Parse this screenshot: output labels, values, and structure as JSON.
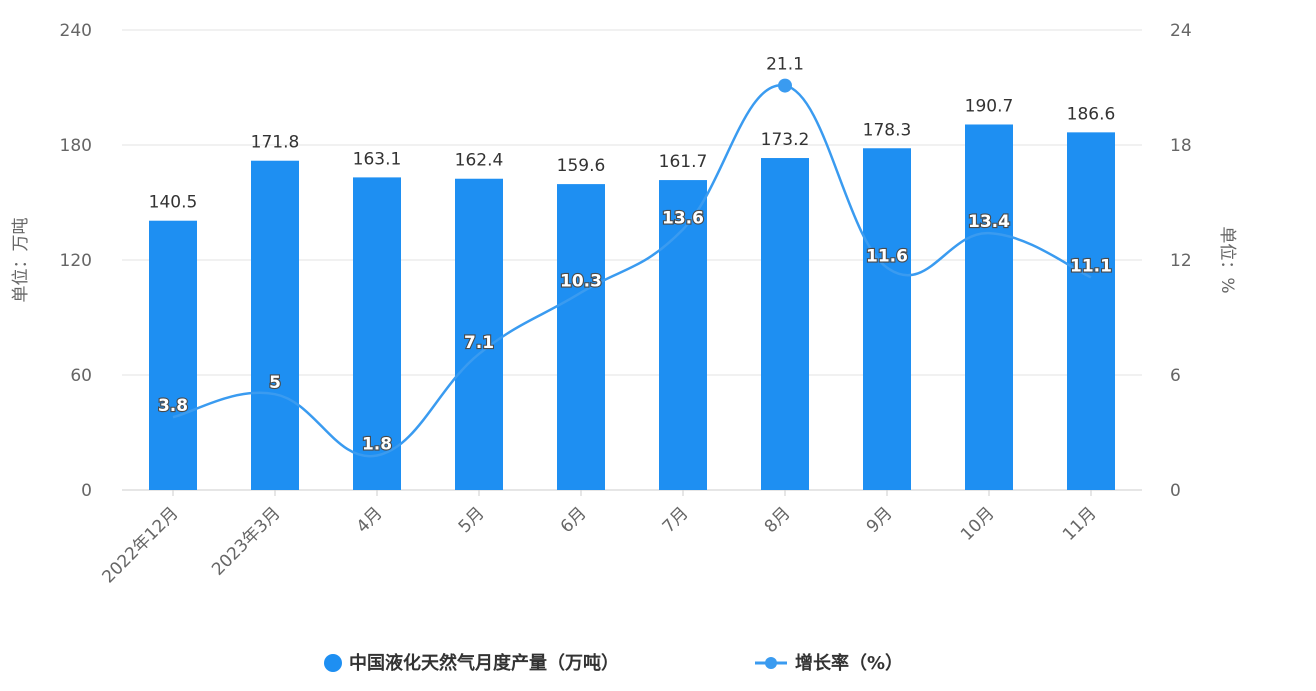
{
  "chart_data": {
    "type": "bar",
    "categories": [
      "2022年12月",
      "2023年3月",
      "4月",
      "5月",
      "6月",
      "7月",
      "8月",
      "9月",
      "10月",
      "11月"
    ],
    "series": [
      {
        "name": "中国液化天然气月度产量（万吨）",
        "type": "bar",
        "axis": "left",
        "values": [
          140.5,
          171.8,
          163.1,
          162.4,
          159.6,
          161.7,
          173.2,
          178.3,
          190.7,
          186.6
        ],
        "value_labels": [
          "140.5",
          "171.8",
          "163.1",
          "162.4",
          "159.6",
          "161.7",
          "173.2",
          "178.3",
          "190.7",
          "186.6"
        ]
      },
      {
        "name": "增长率（%）",
        "type": "line",
        "axis": "right",
        "values": [
          3.8,
          5,
          1.8,
          7.1,
          10.3,
          13.6,
          21.1,
          11.6,
          13.4,
          11.1
        ],
        "value_labels": [
          "3.8",
          "5",
          "1.8",
          "7.1",
          "10.3",
          "13.6",
          "21.1",
          "11.6",
          "13.4",
          "11.1"
        ]
      }
    ],
    "y_left": {
      "label": "单位：万吨",
      "ylim": [
        0,
        240
      ],
      "ticks": [
        "0",
        "60",
        "120",
        "180",
        "240"
      ]
    },
    "y_right": {
      "label": "单位：%",
      "ylim": [
        0,
        24
      ],
      "ticks": [
        "0",
        "6",
        "12",
        "18",
        "24"
      ]
    },
    "grid": true,
    "legend": "bottom",
    "colors": {
      "bar": "#1e8ff2",
      "line": "#3a9bf0",
      "grid": "#e3e3e3",
      "axis": "#cccccc",
      "text": "#666666"
    }
  }
}
